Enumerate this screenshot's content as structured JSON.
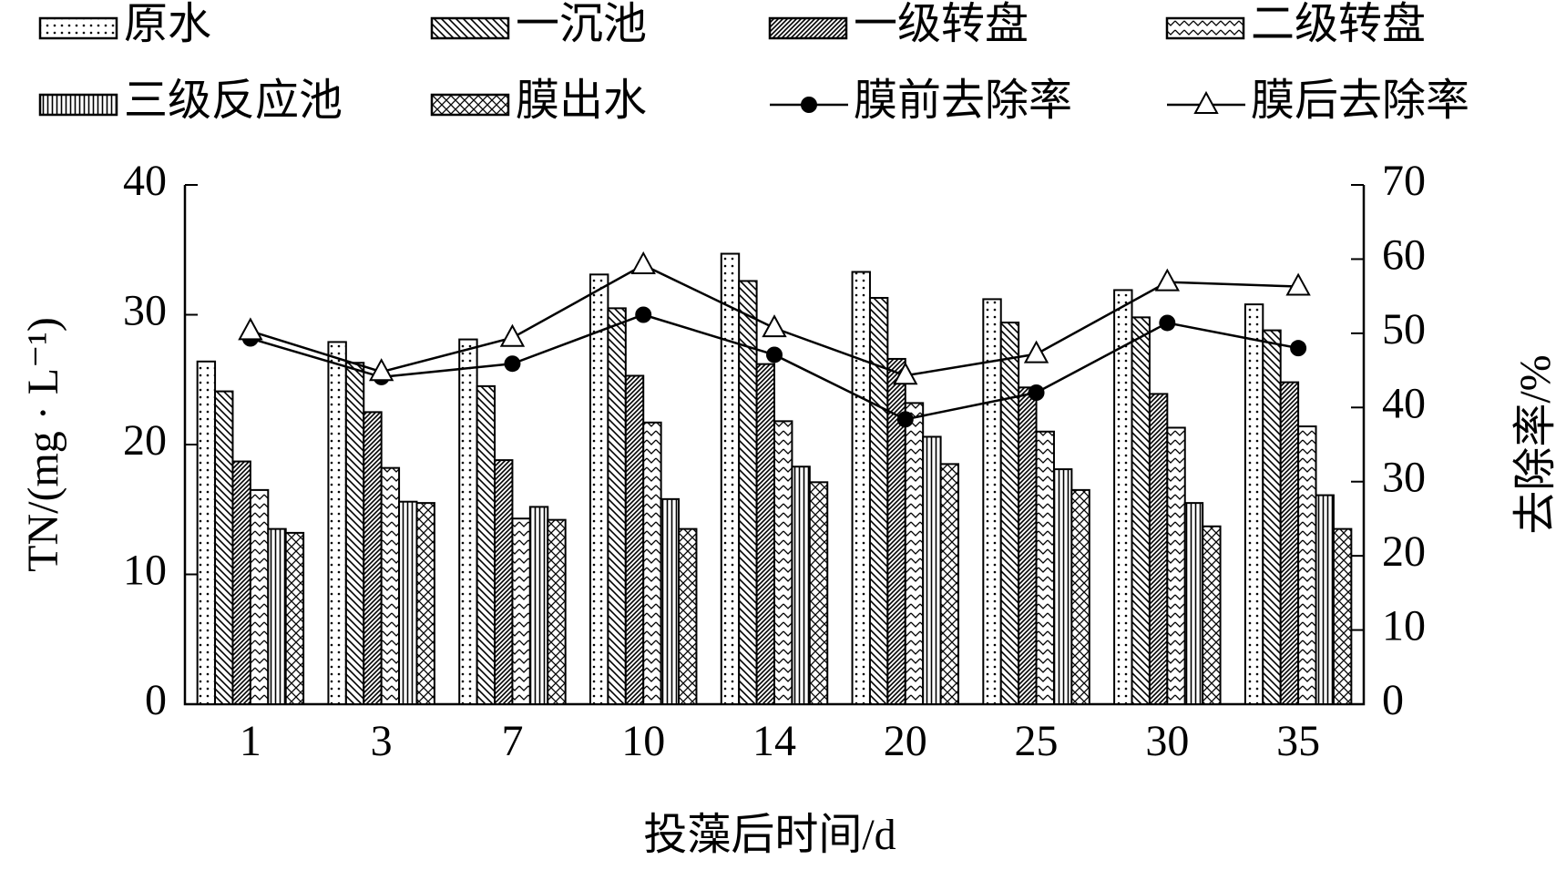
{
  "chart_data": {
    "type": "bar",
    "x_label": "投藻后时间/d",
    "y_label": "TN/(mg · L⁻¹)",
    "y2_label": "去除率/%",
    "categories": [
      "1",
      "3",
      "7",
      "10",
      "14",
      "20",
      "25",
      "30",
      "35"
    ],
    "ylim": [
      0,
      40
    ],
    "yticks": [
      0,
      10,
      20,
      30,
      40
    ],
    "y2lim": [
      0,
      70
    ],
    "y2ticks": [
      0,
      10,
      20,
      30,
      40,
      50,
      60,
      70
    ],
    "series": [
      {
        "name": "原水",
        "type": "bar",
        "color": "#000000",
        "pattern": "dots",
        "values": [
          26.4,
          27.9,
          28.1,
          33.1,
          34.7,
          33.3,
          31.2,
          31.9,
          30.8
        ]
      },
      {
        "name": "一沉池",
        "type": "bar",
        "color": "#000000",
        "pattern": "back-hatch",
        "values": [
          24.1,
          26.3,
          24.5,
          30.5,
          32.6,
          31.3,
          29.4,
          29.8,
          28.8
        ]
      },
      {
        "name": "一级转盘",
        "type": "bar",
        "color": "#000000",
        "pattern": "dense-hatch",
        "values": [
          18.7,
          22.5,
          18.8,
          25.3,
          26.2,
          26.6,
          24.4,
          23.9,
          24.8
        ]
      },
      {
        "name": "二级转盘",
        "type": "bar",
        "color": "#000000",
        "pattern": "zigzag",
        "values": [
          16.5,
          18.2,
          14.3,
          21.7,
          21.8,
          23.2,
          21.0,
          21.3,
          21.4
        ]
      },
      {
        "name": "三级反应池",
        "type": "bar",
        "color": "#000000",
        "pattern": "vertical",
        "values": [
          13.5,
          15.6,
          15.2,
          15.8,
          18.3,
          20.6,
          18.1,
          15.5,
          16.1
        ]
      },
      {
        "name": "膜出水",
        "type": "bar",
        "color": "#000000",
        "pattern": "cross",
        "values": [
          13.2,
          15.5,
          14.2,
          13.5,
          17.1,
          18.5,
          16.5,
          13.7,
          13.5
        ]
      },
      {
        "name": "膜前去除率",
        "type": "line",
        "axis": "y2",
        "color": "#000000",
        "marker": "circle",
        "values": [
          49.3,
          44.1,
          45.9,
          52.5,
          47.1,
          38.4,
          42.0,
          51.4,
          48.0
        ]
      },
      {
        "name": "膜后去除率",
        "type": "line",
        "axis": "y2",
        "color": "#000000",
        "marker": "triangle",
        "values": [
          50.3,
          44.8,
          49.4,
          59.2,
          50.7,
          44.3,
          47.2,
          56.9,
          56.3
        ]
      }
    ]
  }
}
